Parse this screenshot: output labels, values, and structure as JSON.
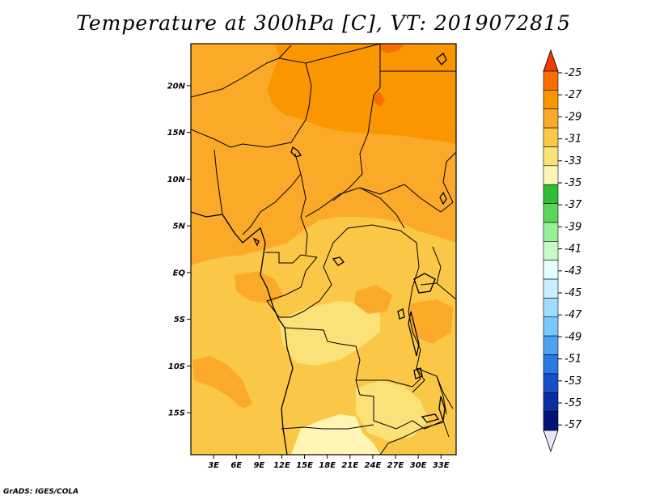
{
  "title": "Temperature at 300hPa [C], VT: 2019072815",
  "footer": "GrADS: IGES/COLA",
  "map": {
    "lat_labels": [
      "20N",
      "15N",
      "10N",
      "5N",
      "EQ",
      "5S",
      "10S",
      "15S"
    ],
    "lat_values": [
      20,
      15,
      10,
      5,
      0,
      -5,
      -10,
      -15
    ],
    "lon_labels": [
      "3E",
      "6E",
      "9E",
      "12E",
      "15E",
      "18E",
      "21E",
      "24E",
      "27E",
      "30E",
      "33E"
    ],
    "lon_values": [
      3,
      6,
      9,
      12,
      15,
      18,
      21,
      24,
      27,
      30,
      33
    ],
    "lon_range": [
      0,
      35
    ],
    "lat_range": [
      -19.5,
      24.5
    ]
  },
  "colorbar": {
    "labels": [
      "-25",
      "-27",
      "-29",
      "-31",
      "-33",
      "-35",
      "-37",
      "-39",
      "-41",
      "-43",
      "-45",
      "-47",
      "-49",
      "-51",
      "-53",
      "-55",
      "-57"
    ],
    "colors": [
      "#f03c00",
      "#fa6e00",
      "#fa9600",
      "#faaa28",
      "#fac846",
      "#fae178",
      "#fff5b4",
      "#32be32",
      "#5ad75a",
      "#96f096",
      "#c8fac8",
      "#e6ffff",
      "#c8f0ff",
      "#a0dcff",
      "#78c8ff",
      "#50a0f0",
      "#2878e6",
      "#1450c8",
      "#0a2da0",
      "#001478",
      "#e6e6fa"
    ]
  },
  "legend_colors": {
    "c_m27_m25": "#fa6e00",
    "c_m29_m27": "#fa9600",
    "c_m31_m29": "#faaa28",
    "c_m33_m31": "#fac846",
    "c_m35_m33": "#fae178",
    "c_lt_m35": "#fff5b4"
  }
}
